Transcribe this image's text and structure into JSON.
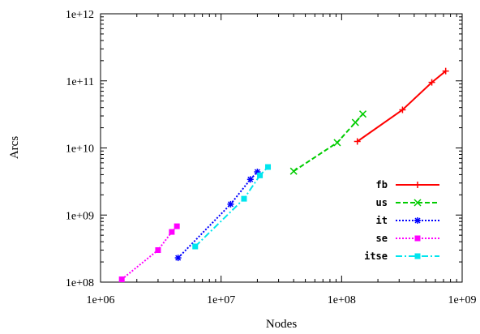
{
  "chart_data": {
    "type": "line",
    "xlabel": "Nodes",
    "ylabel": "Arcs",
    "xscale": "log",
    "yscale": "log",
    "xlim": [
      1000000,
      1000000000
    ],
    "ylim": [
      100000000,
      1000000000000
    ],
    "x_ticks": [
      {
        "value": 1000000,
        "label": "1e+06"
      },
      {
        "value": 10000000,
        "label": "1e+07"
      },
      {
        "value": 100000000,
        "label": "1e+08"
      },
      {
        "value": 1000000000,
        "label": "1e+09"
      }
    ],
    "y_ticks": [
      {
        "value": 100000000,
        "label": "1e+08"
      },
      {
        "value": 1000000000,
        "label": "1e+09"
      },
      {
        "value": 10000000000,
        "label": "1e+10"
      },
      {
        "value": 100000000000,
        "label": "1e+11"
      },
      {
        "value": 1000000000000,
        "label": "1e+12"
      }
    ],
    "grid": false,
    "legend_position": "bottom-right",
    "series": [
      {
        "name": "fb",
        "color": "#ff0000",
        "line_style": "solid",
        "marker": "plus",
        "points": [
          [
            135000000,
            12500000000
          ],
          [
            320000000,
            37000000000
          ],
          [
            560000000,
            95000000000
          ],
          [
            730000000,
            140000000000
          ]
        ]
      },
      {
        "name": "us",
        "color": "#00cc00",
        "line_style": "dashed",
        "marker": "x",
        "points": [
          [
            40000000,
            4500000000
          ],
          [
            92000000,
            12000000000
          ],
          [
            130000000,
            24000000000
          ],
          [
            150000000,
            32000000000
          ]
        ]
      },
      {
        "name": "it",
        "color": "#0000ff",
        "line_style": "dotted",
        "marker": "star",
        "points": [
          [
            4400000,
            230000000
          ],
          [
            12000000,
            1450000000
          ],
          [
            17500000,
            3400000000
          ],
          [
            20000000,
            4400000000
          ]
        ]
      },
      {
        "name": "se",
        "color": "#ff00ff",
        "line_style": "dotted",
        "marker": "square",
        "points": [
          [
            1500000,
            110000000
          ],
          [
            3000000,
            300000000
          ],
          [
            3900000,
            560000000
          ],
          [
            4300000,
            680000000
          ]
        ]
      },
      {
        "name": "itse",
        "color": "#00e5ee",
        "line_style": "dashdot",
        "marker": "square",
        "points": [
          [
            6100000,
            340000000
          ],
          [
            15500000,
            1750000000
          ],
          [
            21000000,
            3900000000
          ],
          [
            24500000,
            5200000000
          ]
        ]
      }
    ]
  }
}
